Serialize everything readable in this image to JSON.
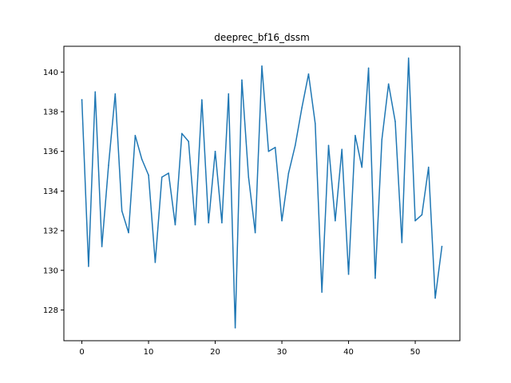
{
  "chart_data": {
    "type": "line",
    "title": "deeprec_bf16_dssm",
    "xlabel": "",
    "ylabel": "",
    "xlim": [
      -2.7,
      56.7
    ],
    "ylim": [
      126.45,
      141.3
    ],
    "xticks": [
      0,
      10,
      20,
      30,
      40,
      50
    ],
    "yticks": [
      128,
      130,
      132,
      134,
      136,
      138,
      140
    ],
    "grid": false,
    "line_color": "#1f77b4",
    "series": [
      {
        "x": [
          0,
          1,
          2,
          3,
          4,
          5,
          6,
          7,
          8,
          9,
          10,
          11,
          12,
          13,
          14,
          15,
          16,
          17,
          18,
          19,
          20,
          21,
          22,
          23,
          24,
          25,
          26,
          27,
          28,
          29,
          30,
          31,
          32,
          33,
          34,
          35,
          36,
          37,
          38,
          39,
          40,
          41,
          42,
          43,
          44,
          45,
          46,
          47,
          48,
          49,
          50,
          51,
          52,
          53,
          54
        ],
        "values": [
          138.6,
          130.2,
          139.0,
          131.2,
          135.3,
          138.9,
          133.0,
          131.9,
          136.8,
          135.6,
          134.8,
          130.4,
          134.7,
          134.9,
          132.3,
          136.9,
          136.5,
          132.3,
          138.6,
          132.4,
          136.0,
          132.4,
          138.9,
          127.1,
          139.6,
          134.7,
          131.9,
          140.3,
          136.0,
          136.2,
          132.5,
          134.9,
          136.3,
          138.2,
          139.9,
          137.4,
          128.9,
          136.3,
          132.5,
          136.1,
          129.8,
          136.8,
          135.2,
          140.2,
          129.6,
          136.6,
          139.4,
          137.5,
          131.4,
          140.7,
          132.5,
          132.8,
          135.2,
          128.6,
          131.2
        ]
      }
    ]
  }
}
